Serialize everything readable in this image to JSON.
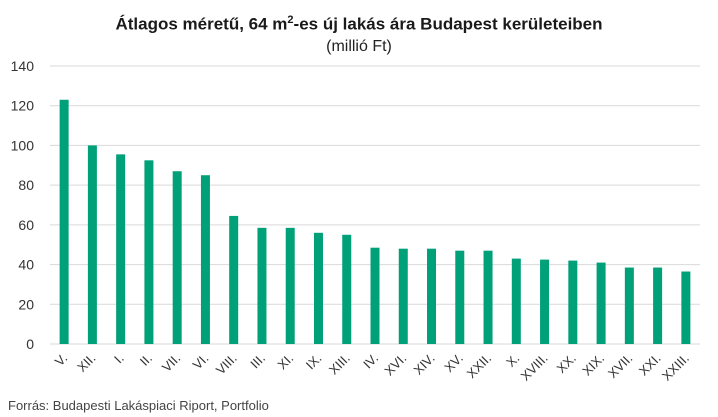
{
  "chart_data": {
    "type": "bar",
    "title": "Átlagos méretű, 64 m²-es új lakás ára Budapest kerületeiben",
    "subtitle": "(millió Ft)",
    "categories": [
      "V.",
      "XII.",
      "I.",
      "II.",
      "VII.",
      "VI.",
      "VIII.",
      "III.",
      "XI.",
      "IX.",
      "XIII.",
      "IV.",
      "XVI.",
      "XIV.",
      "XV.",
      "XXII.",
      "X.",
      "XVIII.",
      "XX.",
      "XIX.",
      "XVII.",
      "XXI.",
      "XXIII."
    ],
    "values": [
      123,
      100,
      95.5,
      92.5,
      87,
      85,
      64.5,
      58.5,
      58.5,
      56,
      55,
      48.5,
      48,
      48,
      47,
      47,
      43,
      42.5,
      42,
      41,
      38.5,
      38.5,
      36.5
    ],
    "ylim": [
      0,
      140
    ],
    "yticks": [
      0,
      20,
      40,
      60,
      80,
      100,
      120,
      140
    ],
    "grid": true,
    "bar_color": "#00a078"
  },
  "source": "Forrás: Budapesti Lakáspiaci Riport, Portfolio"
}
